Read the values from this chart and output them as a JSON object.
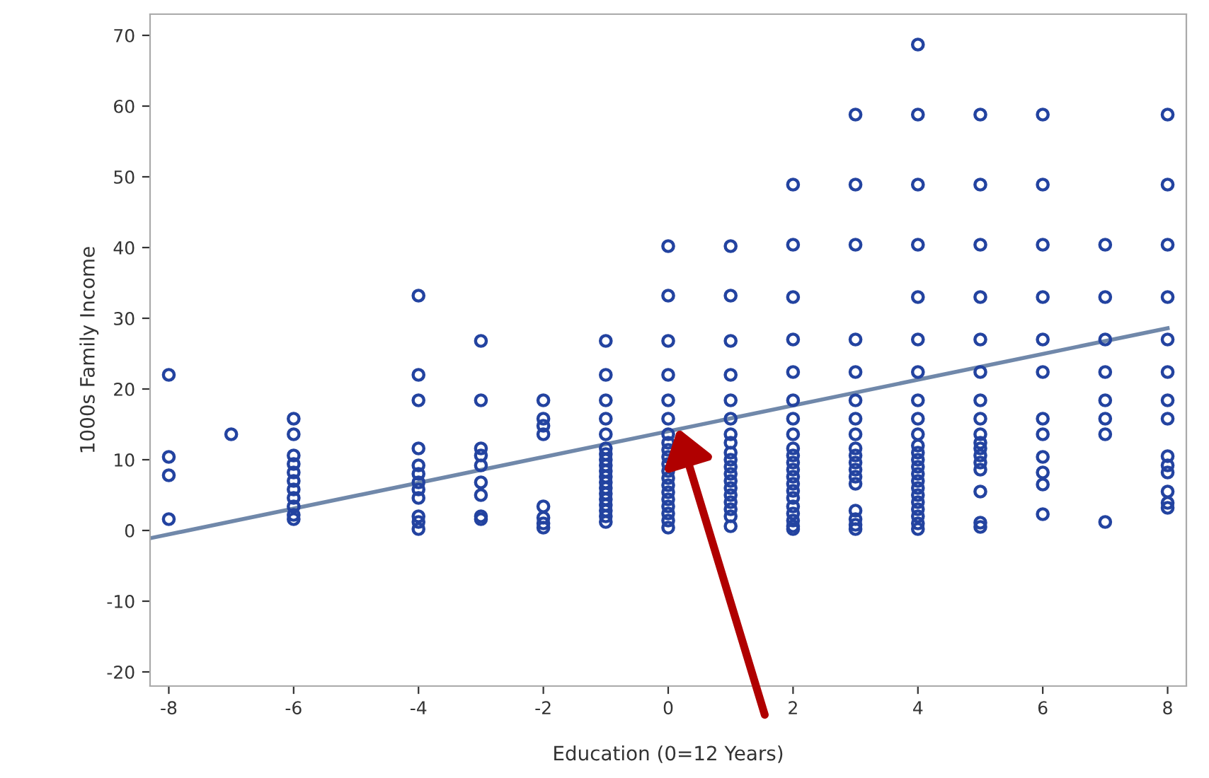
{
  "chart_data": {
    "type": "scatter",
    "xlabel": "Education (0=12 Years)",
    "ylabel": "1000s Family Income",
    "xlim": [
      -8.3,
      8.3
    ],
    "ylim": [
      -22,
      73
    ],
    "xticks": [
      -8,
      -6,
      -4,
      -2,
      0,
      2,
      4,
      6,
      8
    ],
    "yticks": [
      -20,
      -10,
      0,
      10,
      20,
      30,
      40,
      50,
      60,
      70
    ],
    "grid": false,
    "legend": false,
    "series": [
      {
        "marker": "circle",
        "color": "#2343a0",
        "x": [
          -8,
          -8,
          -8,
          -8,
          -7,
          -6,
          -6,
          -6,
          -6,
          -6,
          -6,
          -6,
          -6,
          -6,
          -6,
          -6,
          -4,
          -4,
          -4,
          -4,
          -4,
          -4,
          -4,
          -4,
          -4,
          -4,
          -4,
          -4,
          -3,
          -3,
          -3,
          -3,
          -3,
          -3,
          -3,
          -3,
          -3,
          -2,
          -2,
          -2,
          -2,
          -2,
          -2,
          -2,
          -2,
          -1,
          -1,
          -1,
          -1,
          -1,
          -1,
          -1,
          -1,
          -1,
          -1,
          -1,
          -1,
          -1,
          -1,
          -1,
          -1,
          -1,
          -1,
          -1,
          0,
          0,
          0,
          0,
          0,
          0,
          0,
          0,
          0,
          0,
          0,
          0,
          0,
          0,
          0,
          0,
          0,
          0,
          0,
          0,
          1,
          1,
          1,
          1,
          1,
          1,
          1,
          1,
          1,
          1,
          1,
          1,
          1,
          1,
          1,
          1,
          1,
          1,
          1,
          2,
          2,
          2,
          2,
          2,
          2,
          2,
          2,
          2,
          2,
          2,
          2,
          2,
          2,
          2,
          2,
          2,
          2,
          2,
          2,
          2,
          3,
          3,
          3,
          3,
          3,
          3,
          3,
          3,
          3,
          3,
          3,
          3,
          3,
          3,
          3,
          3,
          3,
          3,
          4,
          4,
          4,
          4,
          4,
          4,
          4,
          4,
          4,
          4,
          4,
          4,
          4,
          4,
          4,
          4,
          4,
          4,
          4,
          4,
          4,
          4,
          4,
          5,
          5,
          5,
          5,
          5,
          5,
          5,
          5,
          5,
          5,
          5,
          5,
          5,
          5,
          5,
          5,
          5,
          6,
          6,
          6,
          6,
          6,
          6,
          6,
          6,
          6,
          6,
          6,
          6,
          7,
          7,
          7,
          7,
          7,
          7,
          7,
          7,
          8,
          8,
          8,
          8,
          8,
          8,
          8,
          8,
          8,
          8,
          8,
          8,
          8,
          8
        ],
        "values": [
          22,
          10.4,
          7.8,
          1.6,
          13.6,
          15.8,
          13.6,
          10.6,
          9.4,
          8.2,
          7,
          5.8,
          4.6,
          3.4,
          2.2,
          1.6,
          33.2,
          22,
          18.4,
          11.6,
          9.2,
          8,
          6.8,
          5.8,
          4.6,
          2,
          1.2,
          0.2,
          26.8,
          18.4,
          11.6,
          10.6,
          9.2,
          6.8,
          5,
          2,
          1.6,
          18.4,
          15.8,
          14.8,
          13.6,
          3.4,
          1.8,
          1,
          0.4,
          26.8,
          22,
          18.4,
          15.8,
          13.6,
          11.6,
          10.8,
          10,
          9.2,
          8.4,
          7.6,
          6.8,
          6,
          5.2,
          4.4,
          3.6,
          2.8,
          2,
          1.2,
          40.2,
          33.2,
          26.8,
          22,
          18.4,
          15.8,
          13.6,
          12.4,
          11.4,
          10.4,
          9.4,
          8.4,
          7.4,
          6.4,
          5.4,
          4.4,
          3.4,
          2.4,
          1.4,
          0.4,
          40.2,
          33.2,
          26.8,
          22,
          18.4,
          15.8,
          13.6,
          12.4,
          11,
          10,
          9,
          8,
          7,
          6,
          5,
          4,
          3,
          2,
          0.6,
          48.9,
          40.4,
          33,
          27,
          22.4,
          18.4,
          15.8,
          13.6,
          11.6,
          10.6,
          9.6,
          8.6,
          7.6,
          6.6,
          5.6,
          4.6,
          3.4,
          2.4,
          1.4,
          0.6,
          0.2,
          58.8,
          48.9,
          40.4,
          27,
          22.4,
          18.4,
          15.8,
          13.6,
          11.6,
          10.6,
          9.6,
          8.6,
          7.6,
          6.6,
          2.8,
          1.6,
          0.8,
          0.2,
          68.7,
          58.8,
          48.9,
          40.4,
          33,
          27,
          22.4,
          18.4,
          15.8,
          13.6,
          12,
          11,
          10,
          9,
          8,
          7,
          6,
          5,
          4,
          3,
          2,
          1,
          0.2,
          58.8,
          48.9,
          40.4,
          33,
          27,
          22.4,
          18.4,
          15.8,
          13.6,
          12.4,
          11.6,
          10.6,
          9.6,
          8.6,
          5.5,
          1.1,
          0.5,
          58.8,
          48.9,
          40.4,
          33,
          27,
          22.4,
          15.8,
          13.6,
          10.4,
          8.2,
          6.5,
          2.3,
          40.4,
          33,
          27,
          22.4,
          18.4,
          15.8,
          13.6,
          1.2,
          58.8,
          48.9,
          40.4,
          33,
          27,
          22.4,
          18.4,
          15.8,
          10.5,
          9.2,
          8.2,
          5.5,
          3.9,
          3.2
        ]
      },
      {
        "type": "line",
        "marker": "none",
        "line_style": "solid",
        "color": "#7088aa",
        "x": [
          -8.3,
          8
        ],
        "values": [
          -1.1,
          28.6
        ]
      }
    ]
  }
}
